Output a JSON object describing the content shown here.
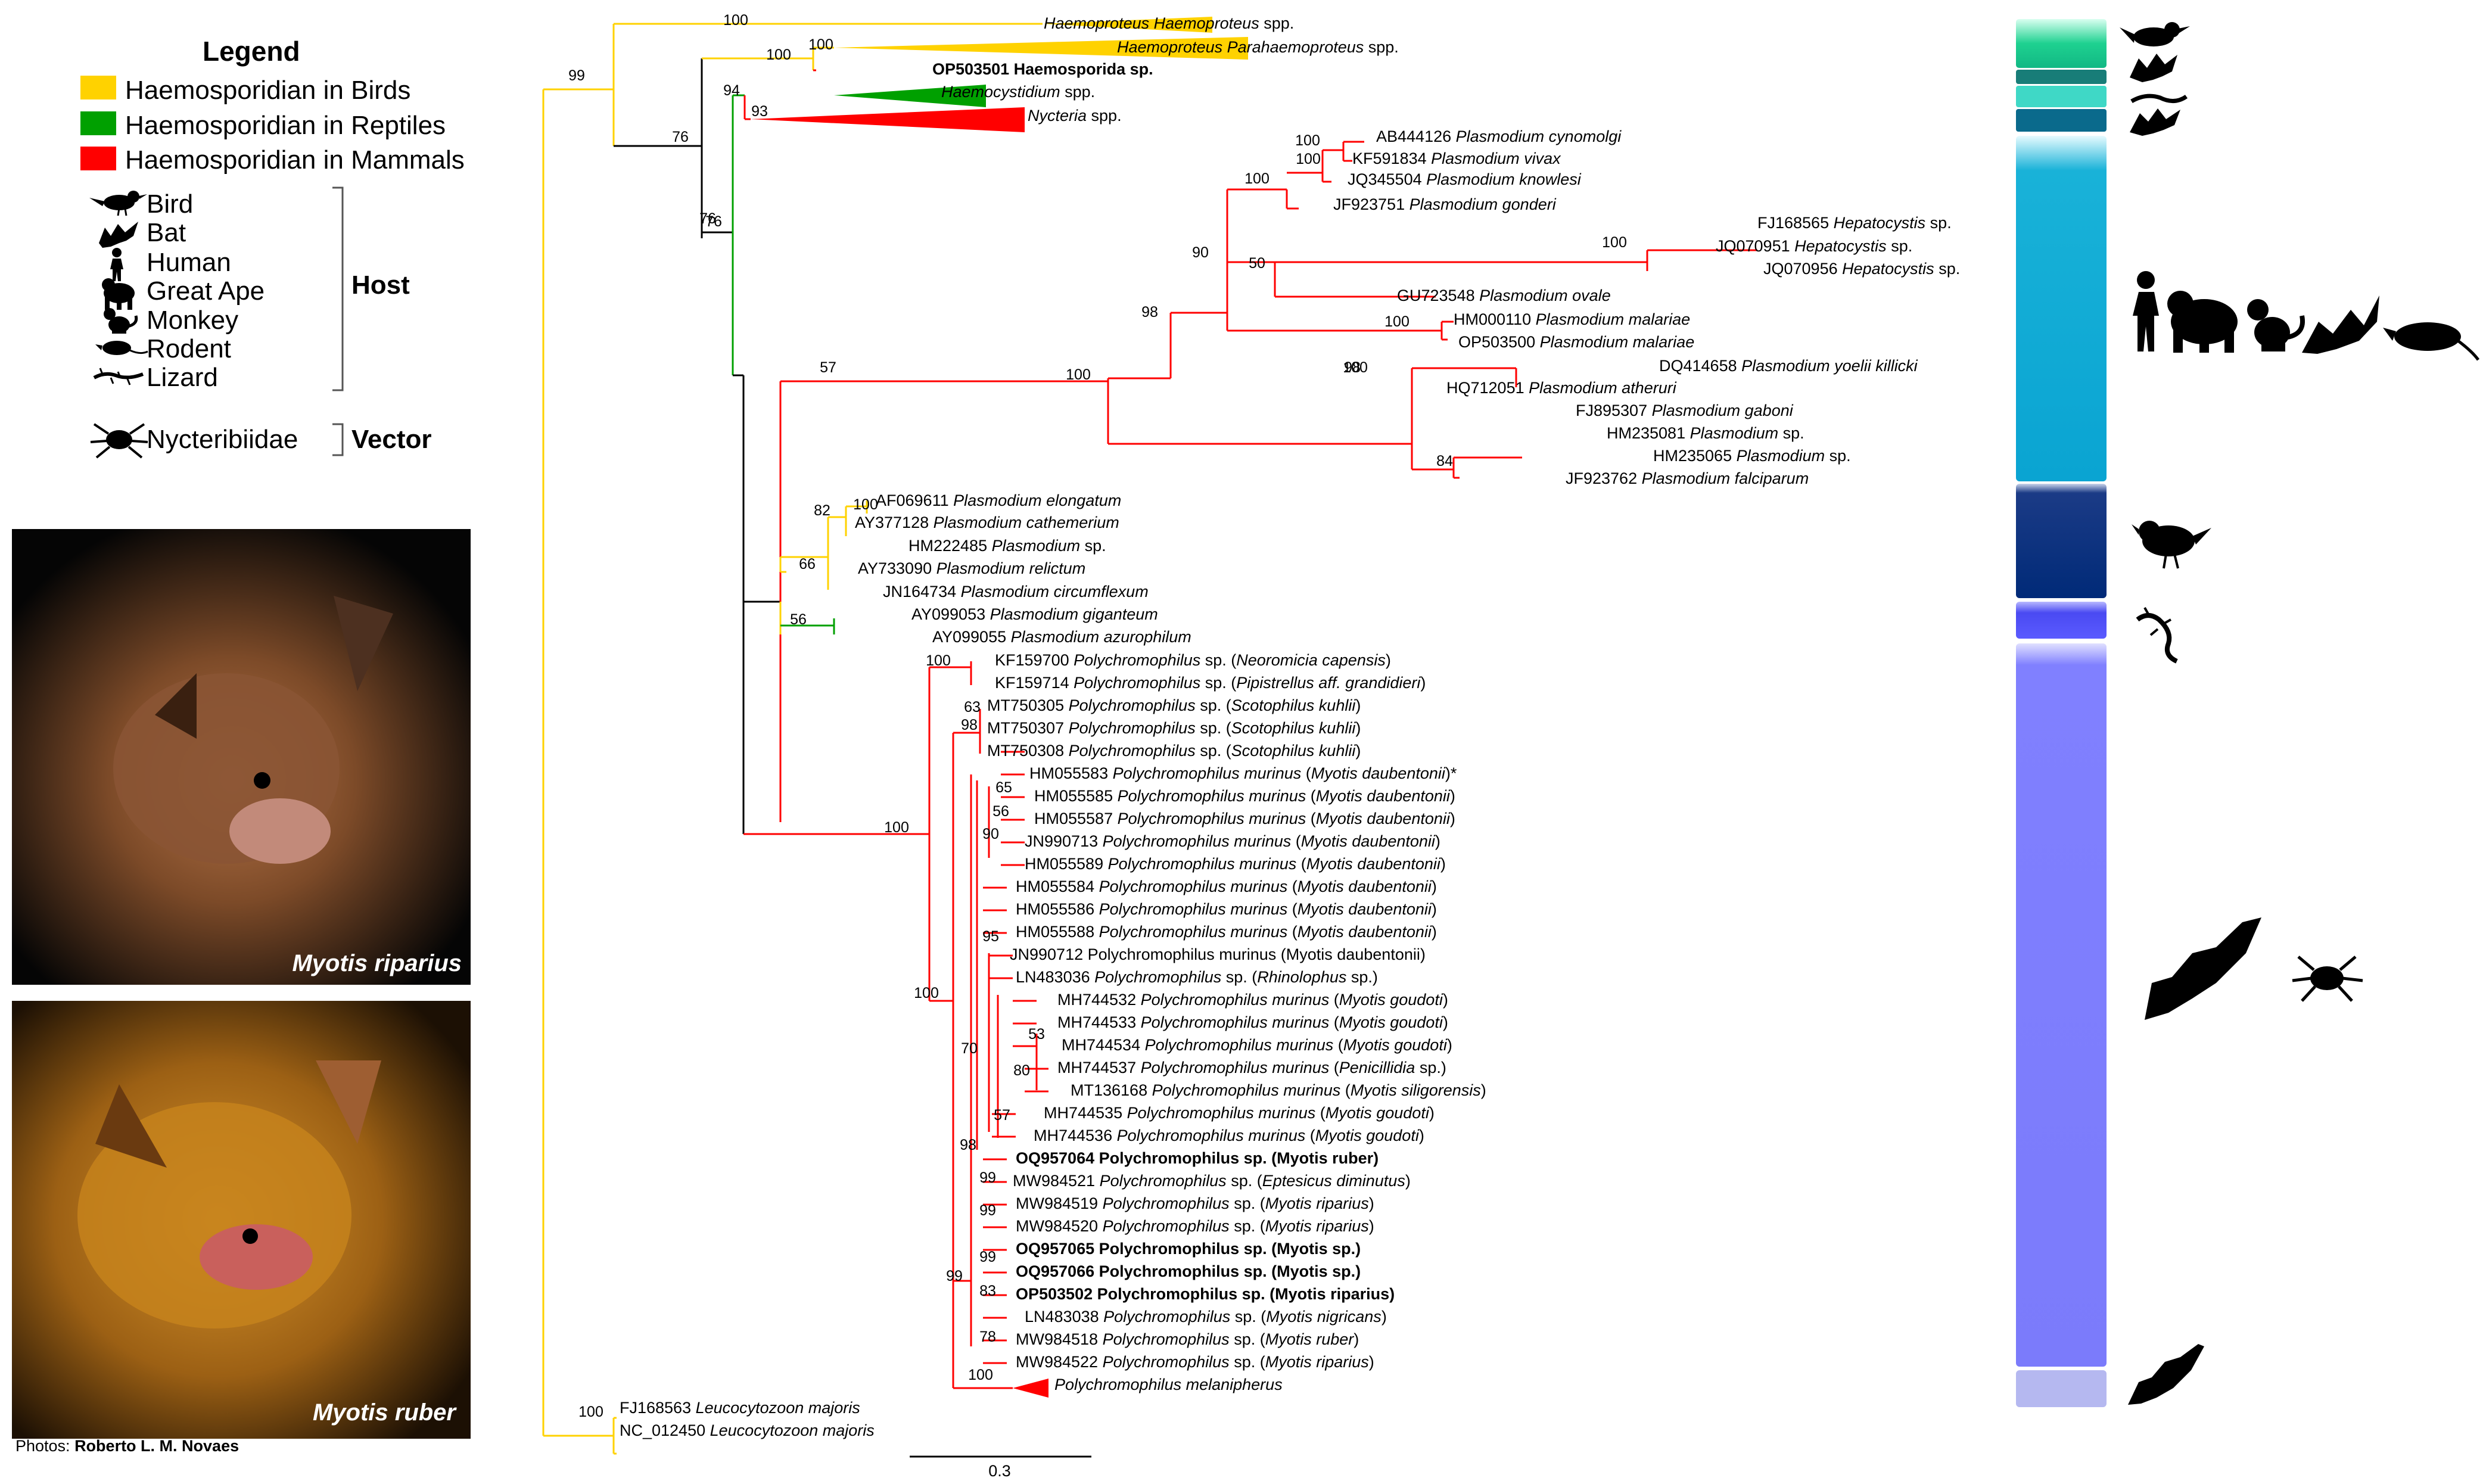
{
  "legend": {
    "title": "Legend",
    "parasite_groups": [
      {
        "label": "Haemosporidian in Birds",
        "color": "#ffd200"
      },
      {
        "label": "Haemosporidian in Reptiles",
        "color": "#00a000"
      },
      {
        "label": "Haemosporidian in Mammals",
        "color": "#ff0000"
      }
    ],
    "hosts": [
      {
        "label": "Bird",
        "icon": "bird-icon"
      },
      {
        "label": "Bat",
        "icon": "bat-icon"
      },
      {
        "label": "Human",
        "icon": "human-icon"
      },
      {
        "label": "Great Ape",
        "icon": "great-ape-icon"
      },
      {
        "label": "Monkey",
        "icon": "monkey-icon"
      },
      {
        "label": "Rodent",
        "icon": "rodent-icon"
      },
      {
        "label": "Lizard",
        "icon": "lizard-icon"
      }
    ],
    "host_group_label": "Host",
    "vector": {
      "label": "Nycteribiidae",
      "icon": "nycteribiidae-icon"
    },
    "vector_group_label": "Vector"
  },
  "photos": [
    {
      "caption": "Myotis riparius"
    },
    {
      "caption": "Myotis ruber"
    }
  ],
  "credit": {
    "prefix": "Photos: ",
    "author": "Roberto L. M. Novaes"
  },
  "scale_bar": {
    "label": "0.3"
  },
  "colors": {
    "birds": "#ffd200",
    "reptiles": "#00a000",
    "mammals": "#ff0000",
    "backbone": "#000000"
  },
  "tree": {
    "support_values": [
      "100",
      "100",
      "100",
      "94",
      "93",
      "76",
      "76",
      "57",
      "76",
      "99",
      "100",
      "100",
      "100",
      "100",
      "90",
      "50",
      "98",
      "100",
      "100",
      "100",
      "84",
      "98",
      "100",
      "82",
      "66",
      "56",
      "100",
      "63",
      "98",
      "100",
      "65",
      "56",
      "90",
      "95",
      "100",
      "53",
      "80",
      "57",
      "70",
      "98",
      "99",
      "99",
      "99",
      "83",
      "78",
      "99",
      "100",
      "100"
    ],
    "tips": [
      {
        "prefix": "",
        "taxon": "Haemoproteus Haemoproteus",
        "suffix": " spp."
      },
      {
        "prefix": "",
        "taxon": "Haemoproteus Parahaemoproteus",
        "suffix": " spp."
      },
      {
        "bold": "OP503501 Haemosporida sp."
      },
      {
        "prefix": "",
        "taxon": "Haemocystidium",
        "suffix": " spp."
      },
      {
        "prefix": "",
        "taxon": "Nycteria",
        "suffix": " spp."
      },
      {
        "prefix": "AB444126 ",
        "taxon": "Plasmodium cynomolgi",
        "suffix": ""
      },
      {
        "prefix": "KF591834 ",
        "taxon": "Plasmodium vivax",
        "suffix": ""
      },
      {
        "prefix": "JQ345504 ",
        "taxon": "Plasmodium knowlesi",
        "suffix": ""
      },
      {
        "prefix": "JF923751 ",
        "taxon": "Plasmodium gonderi",
        "suffix": ""
      },
      {
        "prefix": "FJ168565 ",
        "taxon": "Hepatocystis",
        "suffix": " sp."
      },
      {
        "prefix": "JQ070951 ",
        "taxon": "Hepatocystis",
        "suffix": " sp."
      },
      {
        "prefix": "JQ070956 ",
        "taxon": "Hepatocystis",
        "suffix": " sp."
      },
      {
        "prefix": "GU723548 ",
        "taxon": "Plasmodium ovale",
        "suffix": ""
      },
      {
        "prefix": "HM000110 ",
        "taxon": "Plasmodium malariae",
        "suffix": ""
      },
      {
        "prefix": "OP503500 ",
        "taxon": "Plasmodium malariae",
        "suffix": ""
      },
      {
        "prefix": "DQ414658 ",
        "taxon": "Plasmodium yoelii killicki",
        "suffix": ""
      },
      {
        "prefix": "HQ712051 ",
        "taxon": "Plasmodium atheruri",
        "suffix": ""
      },
      {
        "prefix": "FJ895307 ",
        "taxon": "Plasmodium gaboni",
        "suffix": ""
      },
      {
        "prefix": "HM235081 ",
        "taxon": "Plasmodium",
        "suffix": " sp."
      },
      {
        "prefix": "HM235065 ",
        "taxon": "Plasmodium",
        "suffix": " sp."
      },
      {
        "prefix": "JF923762 ",
        "taxon": "Plasmodium falciparum",
        "suffix": ""
      },
      {
        "prefix": "AF069611 ",
        "taxon": "Plasmodium elongatum",
        "suffix": ""
      },
      {
        "prefix": "AY377128 ",
        "taxon": "Plasmodium cathemerium",
        "suffix": ""
      },
      {
        "prefix": "HM222485 ",
        "taxon": "Plasmodium",
        "suffix": " sp."
      },
      {
        "prefix": "AY733090 ",
        "taxon": "Plasmodium relictum",
        "suffix": ""
      },
      {
        "prefix": "JN164734 ",
        "taxon": "Plasmodium circumflexum",
        "suffix": ""
      },
      {
        "prefix": "AY099053 ",
        "taxon": "Plasmodium giganteum",
        "suffix": ""
      },
      {
        "prefix": "AY099055 ",
        "taxon": "Plasmodium azurophilum",
        "suffix": ""
      },
      {
        "prefix": "KF159700 ",
        "taxon": "Polychromophilus",
        "suffix": " sp. (",
        "host": "Neoromicia capensis",
        "tail": ")"
      },
      {
        "prefix": "KF159714 ",
        "taxon": "Polychromophilus",
        "suffix": " sp. (",
        "host": "Pipistrellus aff. grandidieri",
        "tail": ")"
      },
      {
        "prefix": "MT750305 ",
        "taxon": "Polychromophilus",
        "suffix": " sp. (",
        "host": "Scotophilus kuhlii",
        "tail": ")"
      },
      {
        "prefix": "MT750307 ",
        "taxon": "Polychromophilus",
        "suffix": " sp. (",
        "host": "Scotophilus kuhlii",
        "tail": ")"
      },
      {
        "prefix": "MT750308 ",
        "taxon": "Polychromophilus",
        "suffix": " sp. (",
        "host": "Scotophilus kuhlii",
        "tail": ")"
      },
      {
        "prefix": "HM055583 ",
        "taxon": "Polychromophilus murinus",
        "suffix": " (",
        "host": "Myotis daubentonii",
        "tail": ")*"
      },
      {
        "prefix": "HM055585 ",
        "taxon": "Polychromophilus murinus",
        "suffix": " (",
        "host": "Myotis daubentonii",
        "tail": ")"
      },
      {
        "prefix": "HM055587 ",
        "taxon": "Polychromophilus murinus",
        "suffix": " (",
        "host": "Myotis daubentonii",
        "tail": ")"
      },
      {
        "prefix": "JN990713 ",
        "taxon": "Polychromophilus murinus",
        "suffix": " (",
        "host": "Myotis daubentonii",
        "tail": ")"
      },
      {
        "prefix": "HM055589 ",
        "taxon": "Polychromophilus murinus",
        "suffix": " (",
        "host": "Myotis daubentonii",
        "tail": ")"
      },
      {
        "prefix": "HM055584 ",
        "taxon": "Polychromophilus murinus",
        "suffix": " (",
        "host": "Myotis daubentonii",
        "tail": ")"
      },
      {
        "prefix": "HM055586 ",
        "taxon": "Polychromophilus murinus",
        "suffix": " (",
        "host": "Myotis daubentonii",
        "tail": ")"
      },
      {
        "prefix": "HM055588 ",
        "taxon": "Polychromophilus murinus",
        "suffix": " (",
        "host": "Myotis daubentonii",
        "tail": ")"
      },
      {
        "plain": "JN990712 Polychromophilus murinus (Myotis daubentonii)"
      },
      {
        "prefix": "LN483036 ",
        "taxon": "Polychromophilus",
        "suffix": " sp. (",
        "host": "Rhinolophus",
        "tail": " sp.)"
      },
      {
        "prefix": "MH744532 ",
        "taxon": "Polychromophilus murinus",
        "suffix": " (",
        "host": "Myotis goudoti",
        "tail": ")"
      },
      {
        "prefix": "MH744533 ",
        "taxon": "Polychromophilus murinus",
        "suffix": " (",
        "host": "Myotis goudoti",
        "tail": ")"
      },
      {
        "prefix": "MH744534 ",
        "taxon": "Polychromophilus murinus",
        "suffix": " (",
        "host": "Myotis goudoti",
        "tail": ")"
      },
      {
        "prefix": "MH744537 ",
        "taxon": "Polychromophilus murinus",
        "suffix": " (",
        "host": "Penicillidia",
        "tail": " sp.)"
      },
      {
        "prefix": "MT136168 ",
        "taxon": "Polychromophilus murinus",
        "suffix": " (",
        "host": "Myotis siligorensis",
        "tail": ")"
      },
      {
        "prefix": "MH744535 ",
        "taxon": "Polychromophilus murinus",
        "suffix": " (",
        "host": "Myotis goudoti",
        "tail": ")"
      },
      {
        "prefix": "MH744536 ",
        "taxon": "Polychromophilus murinus",
        "suffix": " (",
        "host": "Myotis goudoti",
        "tail": ")"
      },
      {
        "bold": "OQ957064 Polychromophilus sp. (Myotis ruber)"
      },
      {
        "prefix": "MW984521 ",
        "taxon": "Polychromophilus",
        "suffix": " sp. (",
        "host": "Eptesicus diminutus",
        "tail": ")"
      },
      {
        "prefix": "MW984519 ",
        "taxon": "Polychromophilus",
        "suffix": " sp. (",
        "host": "Myotis riparius",
        "tail": ")"
      },
      {
        "prefix": "MW984520 ",
        "taxon": "Polychromophilus",
        "suffix": " sp. (",
        "host": "Myotis riparius",
        "tail": ")"
      },
      {
        "bold": "OQ957065 Polychromophilus sp. (Myotis sp.)"
      },
      {
        "bold": "OQ957066 Polychromophilus sp. (Myotis sp.)"
      },
      {
        "bold": "OP503502 Polychromophilus sp. (Myotis riparius)"
      },
      {
        "prefix": "LN483038 ",
        "taxon": "Polychromophilus",
        "suffix": " sp. (",
        "host": "Myotis nigricans",
        "tail": ")"
      },
      {
        "prefix": "MW984518 ",
        "taxon": "Polychromophilus",
        "suffix": " sp. (",
        "host": "Myotis ruber",
        "tail": ")"
      },
      {
        "prefix": "MW984522 ",
        "taxon": "Polychromophilus",
        "suffix": " sp. (",
        "host": "Myotis riparius",
        "tail": ")"
      },
      {
        "prefix": "",
        "taxon": "Polychromophilus melanipherus",
        "suffix": ""
      },
      {
        "prefix": "FJ168563 ",
        "taxon": "Leucocytozoon majoris",
        "suffix": ""
      },
      {
        "prefix": "NC_012450 ",
        "taxon": "Leucocytozoon majoris",
        "suffix": ""
      }
    ]
  }
}
